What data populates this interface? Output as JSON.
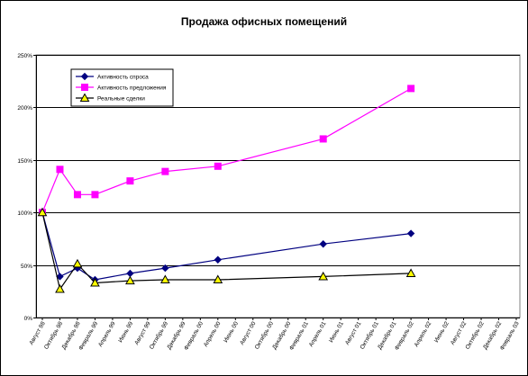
{
  "chart_data": {
    "type": "line",
    "title": "Продажа офисных помещений",
    "xlabel": "",
    "ylabel": "",
    "ylim": [
      0,
      250
    ],
    "yticks": [
      "0%",
      "50%",
      "100%",
      "150%",
      "200%",
      "250%"
    ],
    "grid": true,
    "legend_position": "top-left",
    "x": [
      "Август 98",
      "Октябрь 98",
      "Декабрь 98",
      "Февраль 99",
      "Апрель 99",
      "Июнь 99",
      "Август 99",
      "Октябрь 99",
      "Декабрь 99",
      "Февраль 00",
      "Апрель 00",
      "Июнь 00",
      "Август 00",
      "Октябрь 00",
      "Декабрь 00",
      "Февраль 01",
      "Апрель 01",
      "Июнь 01",
      "Август 01",
      "Октябрь 01",
      "Декабрь 01",
      "Февраль 02",
      "Апрель 02",
      "Июнь 02",
      "Август 02",
      "Октябрь 02",
      "Декабрь 02",
      "Февраль 03"
    ],
    "series": [
      {
        "name": "Активность спроса",
        "color": "#000080",
        "marker": "diamond",
        "points": [
          [
            0,
            100
          ],
          [
            1,
            39
          ],
          [
            2,
            47
          ],
          [
            3,
            36
          ],
          [
            5,
            42
          ],
          [
            7,
            47
          ],
          [
            10,
            55
          ],
          [
            16,
            70
          ],
          [
            21,
            80
          ]
        ]
      },
      {
        "name": "Активность предложения",
        "color": "#ff00ff",
        "marker": "square",
        "points": [
          [
            0,
            100
          ],
          [
            1,
            141
          ],
          [
            2,
            117
          ],
          [
            3,
            117
          ],
          [
            5,
            130
          ],
          [
            7,
            139
          ],
          [
            10,
            144
          ],
          [
            16,
            170
          ],
          [
            21,
            218
          ]
        ]
      },
      {
        "name": "Реальные сделки",
        "color": "#000000",
        "marker": "triangle",
        "points": [
          [
            0,
            100
          ],
          [
            1,
            27
          ],
          [
            2,
            51
          ],
          [
            3,
            33
          ],
          [
            5,
            35
          ],
          [
            7,
            36
          ],
          [
            10,
            36
          ],
          [
            16,
            39
          ],
          [
            21,
            42
          ]
        ]
      }
    ]
  }
}
